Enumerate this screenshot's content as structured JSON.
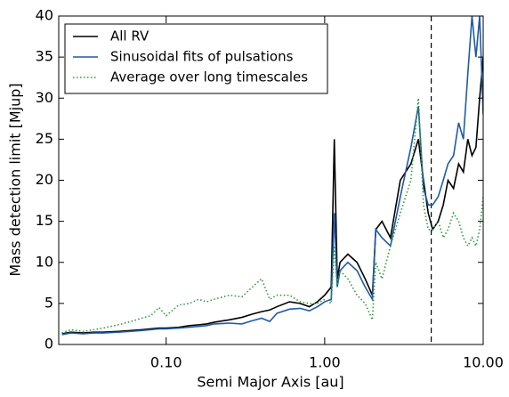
{
  "chart_data": {
    "type": "line",
    "x_label": "Semi Major Axis [au]",
    "y_label": "Mass detection limit [Mjup]",
    "x_scale": "log",
    "xlim": [
      0.021,
      10
    ],
    "ylim": [
      0,
      40
    ],
    "xticks": [
      {
        "value": 0.1,
        "label": "0.10"
      },
      {
        "value": 1,
        "label": "1.00"
      },
      {
        "value": 10,
        "label": "10.00"
      }
    ],
    "yticks": [
      0,
      5,
      10,
      15,
      20,
      25,
      30,
      35,
      40
    ],
    "legend": "upper left",
    "vline": 4.7,
    "x": [
      0.022,
      0.025,
      0.03,
      0.035,
      0.04,
      0.05,
      0.06,
      0.07,
      0.08,
      0.09,
      0.1,
      0.12,
      0.14,
      0.16,
      0.18,
      0.2,
      0.25,
      0.3,
      0.35,
      0.4,
      0.45,
      0.5,
      0.6,
      0.7,
      0.8,
      0.9,
      1.0,
      1.1,
      1.15,
      1.2,
      1.25,
      1.4,
      1.6,
      1.8,
      2.0,
      2.1,
      2.3,
      2.6,
      3.0,
      3.5,
      3.9,
      4.2,
      4.5,
      4.8,
      5.2,
      5.6,
      6.0,
      6.5,
      7.0,
      7.5,
      8.0,
      8.5,
      9.0,
      9.5,
      10.0
    ],
    "series": [
      {
        "name": "All RV",
        "color": "#000000",
        "style": "solid",
        "values": [
          1.3,
          1.5,
          1.4,
          1.5,
          1.5,
          1.6,
          1.7,
          1.8,
          1.9,
          2.0,
          2.0,
          2.1,
          2.3,
          2.4,
          2.5,
          2.7,
          3.0,
          3.3,
          3.7,
          4.0,
          4.2,
          4.6,
          5.2,
          5.0,
          4.6,
          5.2,
          6.0,
          7.0,
          25,
          8,
          10,
          11,
          10,
          8,
          6,
          14,
          15,
          13,
          20,
          22,
          25,
          20,
          16,
          14,
          15,
          17,
          20,
          19,
          22,
          21,
          25,
          23,
          24,
          30,
          35
        ]
      },
      {
        "name": "Sinusoidal fits of pulsations",
        "color": "#1f5aa6",
        "style": "solid",
        "values": [
          1.2,
          1.4,
          1.3,
          1.4,
          1.4,
          1.5,
          1.6,
          1.7,
          1.8,
          1.9,
          1.9,
          2.0,
          2.1,
          2.2,
          2.3,
          2.5,
          2.6,
          2.5,
          2.9,
          3.2,
          2.8,
          3.8,
          4.3,
          4.4,
          4.1,
          4.6,
          5.2,
          5.5,
          16,
          7,
          9,
          10,
          9,
          7,
          5.5,
          14,
          13,
          12,
          18,
          24,
          29,
          19,
          17,
          17,
          18,
          20,
          22,
          23,
          27,
          25,
          33,
          40,
          35,
          40,
          28
        ]
      },
      {
        "name": "Average over long timescales",
        "color": "#2e9a3e",
        "style": "dotted",
        "values": [
          1.4,
          1.8,
          1.6,
          1.8,
          2.0,
          2.4,
          2.8,
          3.2,
          3.5,
          4.5,
          3.5,
          4.8,
          5.0,
          5.5,
          5.2,
          5.5,
          6.0,
          5.8,
          7.0,
          8.0,
          5.5,
          6.0,
          6.0,
          5.2,
          5.0,
          5.0,
          5.5,
          5.0,
          12,
          7,
          9,
          8,
          6,
          5,
          3,
          10,
          8,
          12,
          16,
          20,
          30,
          17,
          14,
          14,
          15,
          13,
          14,
          16,
          15,
          13,
          12,
          13,
          12,
          14,
          18
        ]
      }
    ]
  }
}
